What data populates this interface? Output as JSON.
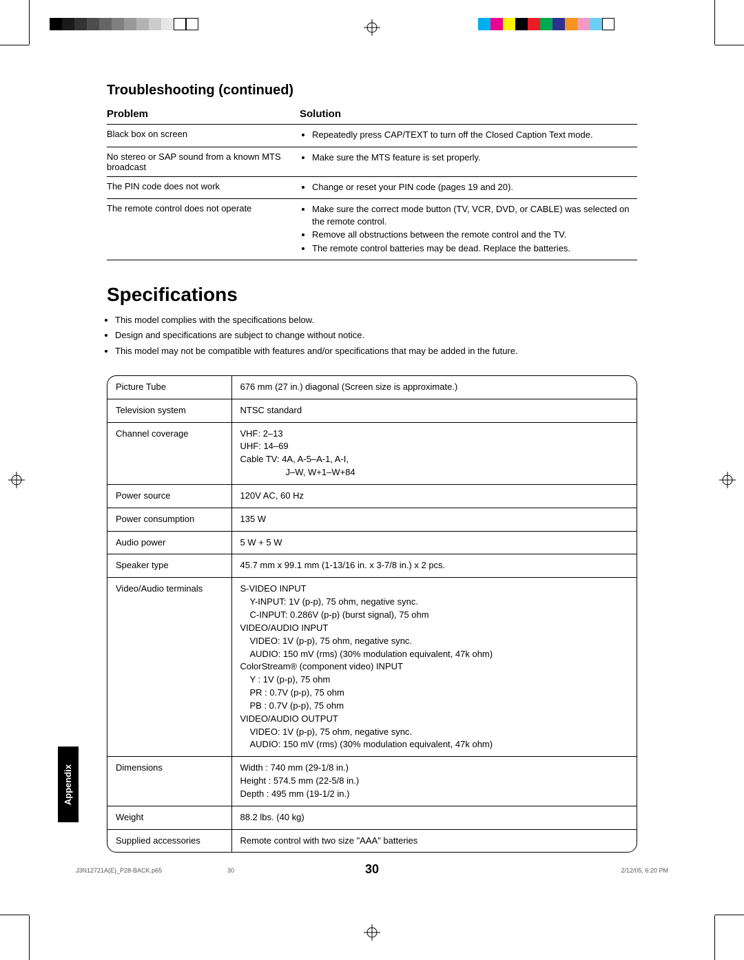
{
  "printer_marks": {
    "grayscale_bar": [
      "#000000",
      "#1a1a1a",
      "#333333",
      "#4d4d4d",
      "#666666",
      "#808080",
      "#999999",
      "#b3b3b3",
      "#cccccc",
      "#e6e6e6"
    ],
    "outline_swatch_count": 2,
    "cmyk_bar": [
      "#00aeef",
      "#ec008c",
      "#fff200",
      "#000000",
      "#ed1c24",
      "#00a651",
      "#2e3192",
      "#f7941d",
      "#f49ac1",
      "#6dcff6"
    ]
  },
  "troubleshooting": {
    "title": "Troubleshooting (continued)",
    "columns": {
      "problem": "Problem",
      "solution": "Solution"
    },
    "rows": [
      {
        "problem": "Black box on screen",
        "solutions": [
          "Repeatedly press CAP/TEXT to turn off the Closed Caption Text mode."
        ]
      },
      {
        "problem": "No stereo or SAP sound from a known MTS broadcast",
        "solutions": [
          "Make sure the MTS feature is set properly."
        ]
      },
      {
        "problem": "The PIN code does not work",
        "solutions": [
          "Change or reset your PIN code (pages 19 and 20)."
        ]
      },
      {
        "problem": "The remote control does not operate",
        "solutions": [
          "Make sure the correct mode button (TV, VCR, DVD, or CABLE) was selected on the remote control.",
          "Remove all obstructions between the remote control and the TV.",
          "The remote control batteries may be dead. Replace the batteries."
        ]
      }
    ]
  },
  "specifications": {
    "title": "Specifications",
    "notes": [
      "This model complies with the specifications below.",
      "Design and specifications are subject to change without notice.",
      "This model may not be compatible with features and/or specifications that may be added in the future."
    ],
    "rows": {
      "picture_tube": {
        "label": "Picture Tube",
        "value": "676 mm (27 in.) diagonal (Screen size is approximate.)"
      },
      "tv_system": {
        "label": "Television system",
        "value": "NTSC standard"
      },
      "channel_coverage": {
        "label": "Channel coverage",
        "lines": [
          "VHF: 2–13",
          "UHF: 14–69",
          "Cable TV: 4A, A-5–A-1, A-I,",
          "J–W, W+1–W+84"
        ]
      },
      "power_source": {
        "label": "Power source",
        "value": "120V AC, 60 Hz"
      },
      "power_consumption": {
        "label": "Power consumption",
        "value": "135 W"
      },
      "audio_power": {
        "label": "Audio power",
        "value": "5 W + 5 W"
      },
      "speaker_type": {
        "label": "Speaker type",
        "value": "45.7 mm x 99.1 mm (1-13/16 in. x 3-7/8 in.) x 2 pcs."
      },
      "terminals": {
        "label": "Video/Audio terminals",
        "groups": [
          {
            "heading": "S-VIDEO INPUT",
            "lines": [
              "Y-INPUT: 1V (p-p), 75 ohm, negative sync.",
              "C-INPUT: 0.286V (p-p) (burst signal), 75 ohm"
            ]
          },
          {
            "heading": "VIDEO/AUDIO INPUT",
            "lines": [
              "VIDEO: 1V (p-p), 75 ohm, negative sync.",
              "AUDIO: 150 mV (rms) (30% modulation equivalent, 47k ohm)"
            ]
          },
          {
            "heading": "ColorStream® (component video) INPUT",
            "lines": [
              "Y   : 1V (p-p), 75 ohm",
              "PR : 0.7V (p-p), 75 ohm",
              "PB : 0.7V (p-p), 75 ohm"
            ]
          },
          {
            "heading": "VIDEO/AUDIO OUTPUT",
            "lines": [
              "VIDEO: 1V (p-p), 75 ohm, negative sync.",
              "AUDIO: 150 mV (rms) (30% modulation equivalent, 47k ohm)"
            ]
          }
        ]
      },
      "dimensions": {
        "label": "Dimensions",
        "lines": [
          "Width  : 740 mm (29-1/8 in.)",
          "Height : 574.5 mm (22-5/8 in.)",
          "Depth  : 495 mm (19-1/2 in.)"
        ]
      },
      "weight": {
        "label": "Weight",
        "value": "88.2 lbs. (40 kg)"
      },
      "accessories": {
        "label": "Supplied accessories",
        "value": "Remote control with two size \"AAA\" batteries"
      }
    }
  },
  "page_number": "30",
  "side_tab": "Appendix",
  "footer": {
    "file": "J3N12721A(E)_P28-BACK.p65",
    "page": "30",
    "timestamp": "2/12/05, 6:20 PM"
  }
}
